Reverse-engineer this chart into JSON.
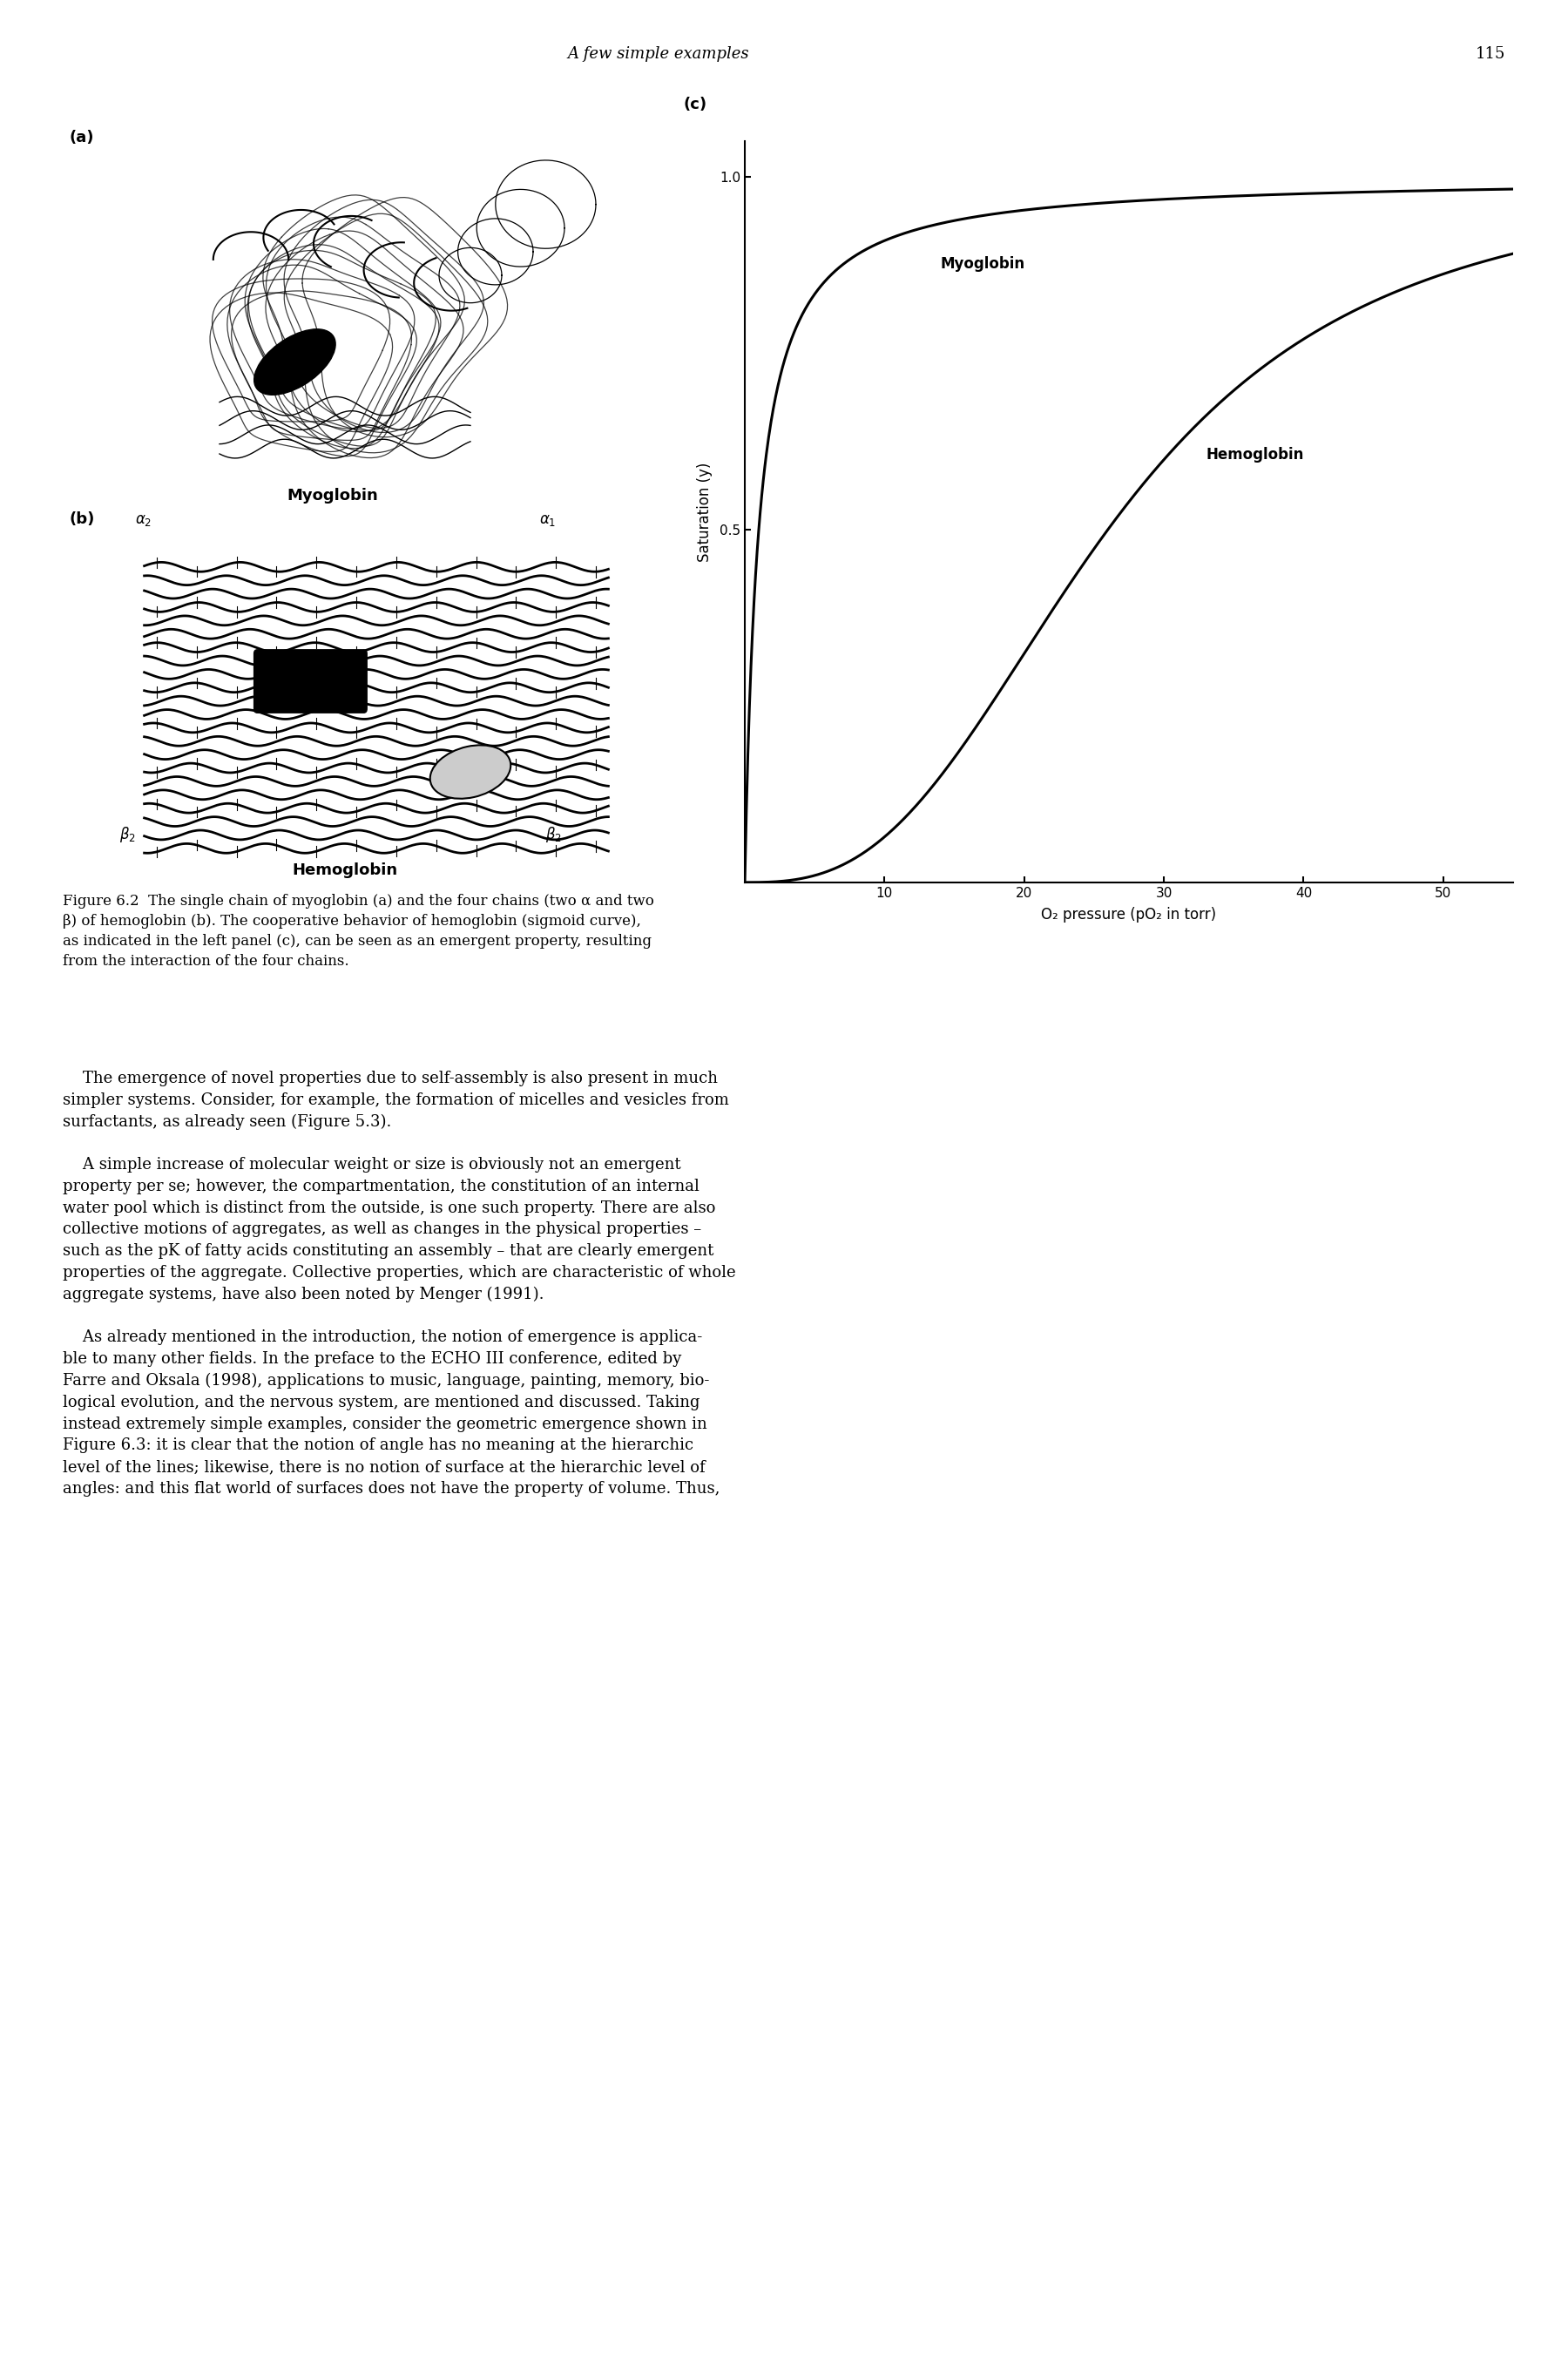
{
  "page_title": "A few simple examples",
  "page_number": "115",
  "panel_a_label": "(a)",
  "panel_b_label": "(b)",
  "panel_c_label": "(c)",
  "myoglobin_label": "Myoglobin",
  "hemoglobin_label": "Hemoglobin",
  "ylabel": "Saturation (y)",
  "xlabel": "O₂ pressure (pO₂ in torr)",
  "yticks": [
    0.5,
    1.0
  ],
  "xticks": [
    10,
    20,
    30,
    40,
    50
  ],
  "ylim": [
    0,
    1.05
  ],
  "xlim": [
    0,
    55
  ],
  "curve_myoglobin_label": "Myoglobin",
  "curve_hemoglobin_label": "Hemoglobin",
  "caption_line1": "Figure 6.2  The single chain of myoglobin (a) and the four chains (two α and two",
  "caption_line2": "β) of hemoglobin (b). The cooperative behavior of hemoglobin (sigmoid curve),",
  "caption_line3": "as indicated in the left panel (c), can be seen as an emergent property, resulting",
  "caption_line4": "from the interaction of the four chains.",
  "body_para1_indent": "    The emergence of novel properties due to self-assembly is also present in much",
  "body_para1_line2": "simpler systems. Consider, for example, the formation of micelles and vesicles from",
  "body_para1_line3": "surfactants, as already seen (Figure 5.3).",
  "body_para2_indent": "    A simple increase of molecular weight or size is obviously not an emergent",
  "body_para2_line2": "property per se; however, the compartmentation, the constitution of an internal",
  "body_para2_line3": "water pool which is distinct from the outside, is one such property. There are also",
  "body_para2_line4": "collective motions of aggregates, as well as changes in the physical properties –",
  "body_para2_line5": "such as the pK of fatty acids constituting an assembly – that are clearly emergent",
  "body_para2_line6": "properties of the aggregate. Collective properties, which are characteristic of whole",
  "body_para2_line7": "aggregate systems, have also been noted by Menger (1991).",
  "body_para3_indent": "    As already mentioned in the introduction, the notion of emergence is applica-",
  "body_para3_line2": "ble to many other fields. In the preface to the ECHO III conference, edited by",
  "body_para3_line3": "Farre and Oksala (1998), applications to music, language, painting, memory, bio-",
  "body_para3_line4": "logical evolution, and the nervous system, are mentioned and discussed. Taking",
  "body_para3_line5": "instead extremely simple examples, consider the geometric emergence shown in",
  "body_para3_line6": "Figure 6.3: it is clear that the notion of angle has no meaning at the hierarchic",
  "body_para3_line7": "level of the lines; likewise, there is no notion of surface at the hierarchic level of",
  "body_para3_line8": "angles: and this flat world of surfaces does not have the property of volume. Thus,",
  "background_color": "#ffffff",
  "text_color": "#000000",
  "header_fontsize": 13,
  "caption_fontsize": 12,
  "body_fontsize": 13,
  "graph_label_fontsize": 12,
  "graph_tick_fontsize": 11,
  "panel_label_fontsize": 13
}
